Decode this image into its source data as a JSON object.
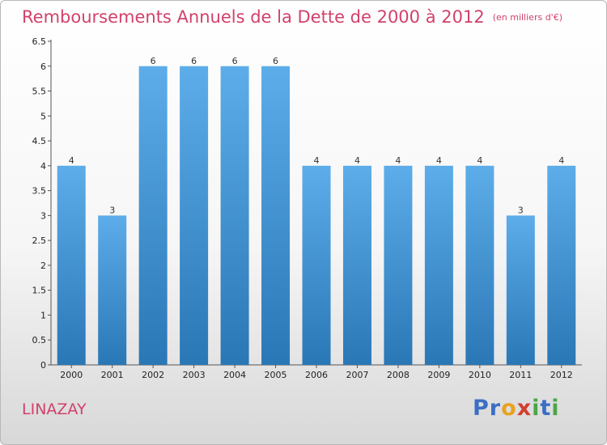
{
  "header": {
    "title": "Remboursements Annuels de la Dette de 2000 à 2012",
    "unit": "(en milliers d'€)"
  },
  "footer": {
    "commune": "LINAZAY",
    "logo_letters": [
      {
        "ch": "P",
        "color": "#3a6fc4"
      },
      {
        "ch": "r",
        "color": "#3a6fc4"
      },
      {
        "ch": "o",
        "color": "#e9a21f"
      },
      {
        "ch": "x",
        "color": "#d13f2f"
      },
      {
        "ch": "i",
        "color": "#4aa647"
      },
      {
        "ch": "t",
        "color": "#3a6fc4"
      },
      {
        "ch": "i",
        "color": "#4aa647"
      }
    ]
  },
  "colors": {
    "bar_top": "#5dadea",
    "bar_bottom": "#2a77b6",
    "title": "#d2416b"
  },
  "chart_data": {
    "type": "bar",
    "title": "Remboursements Annuels de la Dette de 2000 à 2012",
    "categories": [
      "2000",
      "2001",
      "2002",
      "2003",
      "2004",
      "2005",
      "2006",
      "2007",
      "2008",
      "2009",
      "2010",
      "2011",
      "2012"
    ],
    "values": [
      4,
      3,
      6,
      6,
      6,
      6,
      4,
      4,
      4,
      4,
      4,
      3,
      4
    ],
    "ylim": [
      0,
      6.5
    ],
    "yticks": [
      "0",
      "0.5",
      "1",
      "1.5",
      "2",
      "2.5",
      "3",
      "3.5",
      "4",
      "4.5",
      "5",
      "5.5",
      "6",
      "6.5"
    ],
    "grid": false,
    "legend": "none"
  }
}
